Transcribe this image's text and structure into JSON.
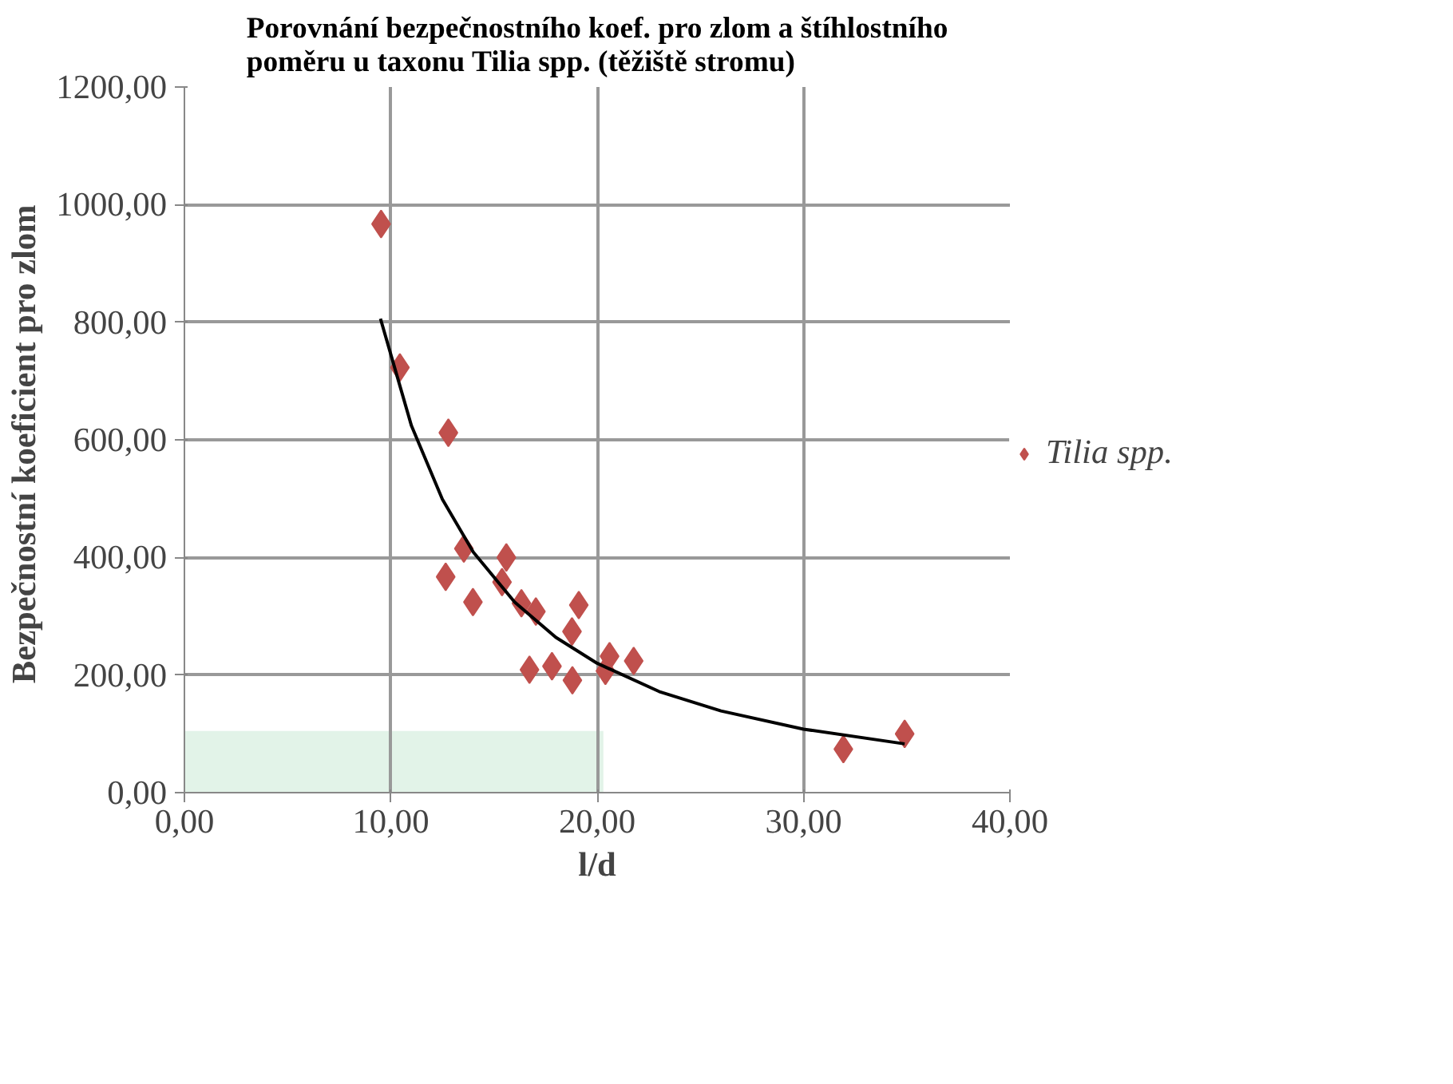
{
  "chart_data": {
    "type": "scatter",
    "title": "Porovnání bezpečnostního koef. pro zlom a štíhlostního\npoměru u taxonu Tilia spp. (těžiště stromu)",
    "xlabel": "l/d",
    "ylabel": "Bezpečnostní koeficient  pro zlom",
    "series": [
      {
        "type": "area",
        "color": "#e2f3e8",
        "x": [
          0,
          20.3
        ],
        "values": [
          105,
          105
        ]
      },
      {
        "name": "Tilia spp.",
        "color": "#c0504d",
        "marker": "diamond",
        "x": [
          9.53,
          10.44,
          12.79,
          13.54,
          12.66,
          15.6,
          15.39,
          13.98,
          16.33,
          17.03,
          19.11,
          18.78,
          16.72,
          17.81,
          18.8,
          20.6,
          20.4,
          21.77,
          31.93,
          34.9
        ],
        "values": [
          967,
          723,
          612,
          415,
          367,
          400,
          358,
          324,
          322,
          308,
          319,
          274,
          209,
          215,
          191,
          232,
          207,
          224,
          74,
          100
        ]
      },
      {
        "type": "line",
        "color": "#000000",
        "marker": "none",
        "x": [
          9.5,
          11,
          12.5,
          14,
          16,
          18,
          20,
          23,
          26,
          30,
          34.9
        ],
        "values": [
          806,
          624,
          499,
          409,
          324,
          264,
          220,
          172,
          139,
          108,
          83
        ]
      }
    ],
    "xlim": [
      0,
      40
    ],
    "xticks": [
      {
        "value": 0,
        "label": "0,00"
      },
      {
        "value": 10,
        "label": "10,00"
      },
      {
        "value": 20,
        "label": "20,00"
      },
      {
        "value": 30,
        "label": "30,00"
      },
      {
        "value": 40,
        "label": "40,00"
      }
    ],
    "ylim": [
      0,
      1200
    ],
    "yticks": [
      {
        "value": 0,
        "label": "0,00"
      },
      {
        "value": 200,
        "label": "200,00"
      },
      {
        "value": 400,
        "label": "400,00"
      },
      {
        "value": 600,
        "label": "600,00"
      },
      {
        "value": 800,
        "label": "800,00"
      },
      {
        "value": 1000,
        "label": "1000,00"
      },
      {
        "value": 1200,
        "label": "1200,00"
      }
    ],
    "grid": true,
    "legend": "right"
  }
}
